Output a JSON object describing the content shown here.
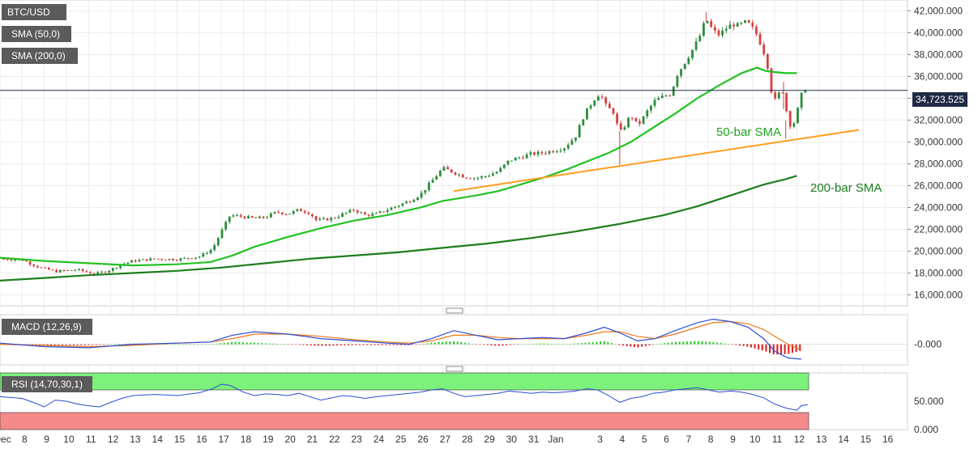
{
  "chart_data": {
    "type": "candlestick",
    "symbol_label": "BTC/USD",
    "indicator_labels": [
      "SMA (50,0)",
      "SMA (200,0)"
    ],
    "last_price": "34,723.525",
    "y_ticks": [
      "16,000.000",
      "18,000.000",
      "20,000.000",
      "22,000.000",
      "24,000.000",
      "26,000.000",
      "28,000.000",
      "30,000.000",
      "32,000.000",
      "34,000.000",
      "36,000.000",
      "38,000.000",
      "40,000.000",
      "42,000.000"
    ],
    "ylim": [
      15000,
      43000
    ],
    "x_ticks": [
      "Dec",
      "8",
      "9",
      "10",
      "11",
      "12",
      "13",
      "14",
      "15",
      "16",
      "17",
      "18",
      "19",
      "20",
      "21",
      "22",
      "23",
      "24",
      "25",
      "26",
      "27",
      "28",
      "29",
      "30",
      "31",
      "Jan",
      "3",
      "4",
      "5",
      "6",
      "7",
      "8",
      "9",
      "10",
      "11",
      "12",
      "13",
      "14",
      "15",
      "16"
    ],
    "x_tick_days": [
      7,
      8,
      9,
      10,
      11,
      12,
      13,
      14,
      15,
      16,
      17,
      18,
      19,
      20,
      21,
      22,
      23,
      24,
      25,
      26,
      27,
      28,
      29,
      30,
      31,
      32,
      34,
      35,
      36,
      37,
      38,
      39,
      40,
      41,
      42,
      43,
      44,
      45,
      46,
      47
    ],
    "xlim": [
      7,
      48
    ],
    "price_path": [
      [
        7.0,
        19300
      ],
      [
        8.0,
        19200
      ],
      [
        8.8,
        18500
      ],
      [
        9.5,
        18150
      ],
      [
        10.5,
        18300
      ],
      [
        11.3,
        17900
      ],
      [
        12.0,
        18300
      ],
      [
        12.5,
        18800
      ],
      [
        13.0,
        19100
      ],
      [
        14.0,
        19300
      ],
      [
        15.0,
        19250
      ],
      [
        16.0,
        19500
      ],
      [
        16.6,
        20200
      ],
      [
        17.0,
        21800
      ],
      [
        17.4,
        23300
      ],
      [
        17.8,
        23200
      ],
      [
        18.5,
        23000
      ],
      [
        19.0,
        23100
      ],
      [
        19.5,
        23600
      ],
      [
        20.0,
        23400
      ],
      [
        20.5,
        23800
      ],
      [
        21.0,
        23500
      ],
      [
        21.3,
        22800
      ],
      [
        22.0,
        23000
      ],
      [
        22.5,
        23400
      ],
      [
        23.0,
        23800
      ],
      [
        23.5,
        23300
      ],
      [
        24.0,
        23400
      ],
      [
        24.5,
        23800
      ],
      [
        25.0,
        24200
      ],
      [
        25.5,
        24600
      ],
      [
        26.0,
        25200
      ],
      [
        26.5,
        26400
      ],
      [
        27.0,
        27600
      ],
      [
        27.4,
        27300
      ],
      [
        28.0,
        26800
      ],
      [
        28.5,
        26700
      ],
      [
        29.0,
        26900
      ],
      [
        29.5,
        27300
      ],
      [
        30.0,
        28300
      ],
      [
        30.5,
        28600
      ],
      [
        31.0,
        28900
      ],
      [
        31.5,
        29000
      ],
      [
        32.0,
        29200
      ],
      [
        32.5,
        29500
      ],
      [
        33.0,
        30500
      ],
      [
        33.4,
        32500
      ],
      [
        33.8,
        33800
      ],
      [
        34.1,
        34500
      ],
      [
        34.4,
        33200
      ],
      [
        34.7,
        32800
      ],
      [
        35.0,
        30800
      ],
      [
        35.2,
        31400
      ],
      [
        35.5,
        32500
      ],
      [
        35.8,
        31500
      ],
      [
        36.0,
        32000
      ],
      [
        36.3,
        33000
      ],
      [
        36.6,
        33800
      ],
      [
        37.0,
        34200
      ],
      [
        37.3,
        34400
      ],
      [
        37.6,
        36200
      ],
      [
        38.0,
        37500
      ],
      [
        38.3,
        38500
      ],
      [
        38.6,
        39600
      ],
      [
        38.9,
        41300
      ],
      [
        39.2,
        40200
      ],
      [
        39.5,
        39800
      ],
      [
        39.8,
        40400
      ],
      [
        40.1,
        40800
      ],
      [
        40.4,
        40600
      ],
      [
        40.6,
        41000
      ],
      [
        40.9,
        40700
      ],
      [
        41.2,
        39800
      ],
      [
        41.5,
        38300
      ],
      [
        41.7,
        36800
      ],
      [
        41.9,
        34000
      ],
      [
        42.1,
        33700
      ],
      [
        42.3,
        35300
      ],
      [
        42.5,
        33100
      ],
      [
        42.7,
        31600
      ],
      [
        42.9,
        31800
      ],
      [
        43.1,
        33500
      ],
      [
        43.3,
        35000
      ],
      [
        43.5,
        34700
      ]
    ],
    "wick_spikes": [
      [
        35.0,
        27900,
        31000
      ],
      [
        42.5,
        30300,
        32000
      ],
      [
        38.9,
        41000,
        41900
      ],
      [
        42.4,
        33000,
        35500
      ]
    ],
    "sma50": [
      [
        7.0,
        19400
      ],
      [
        9.0,
        19100
      ],
      [
        11.0,
        18900
      ],
      [
        13.0,
        18700
      ],
      [
        15.0,
        18800
      ],
      [
        16.5,
        19000
      ],
      [
        17.5,
        19600
      ],
      [
        18.5,
        20400
      ],
      [
        20.0,
        21300
      ],
      [
        21.5,
        22100
      ],
      [
        23.0,
        22800
      ],
      [
        24.5,
        23300
      ],
      [
        26.0,
        24000
      ],
      [
        27.0,
        24600
      ],
      [
        28.5,
        25100
      ],
      [
        29.5,
        25500
      ],
      [
        30.5,
        26100
      ],
      [
        31.5,
        26700
      ],
      [
        32.5,
        27400
      ],
      [
        33.5,
        28200
      ],
      [
        34.5,
        29000
      ],
      [
        35.5,
        30000
      ],
      [
        36.5,
        31300
      ],
      [
        37.5,
        32600
      ],
      [
        38.5,
        34000
      ],
      [
        39.5,
        35200
      ],
      [
        40.5,
        36300
      ],
      [
        41.2,
        36800
      ],
      [
        41.6,
        36500
      ],
      [
        42.0,
        36400
      ],
      [
        42.5,
        36300
      ],
      [
        43.0,
        36300
      ]
    ],
    "sma200": [
      [
        7.0,
        17300
      ],
      [
        9.0,
        17550
      ],
      [
        11.0,
        17800
      ],
      [
        13.0,
        18000
      ],
      [
        15.0,
        18200
      ],
      [
        17.0,
        18500
      ],
      [
        19.0,
        18900
      ],
      [
        21.0,
        19300
      ],
      [
        23.0,
        19600
      ],
      [
        25.0,
        19900
      ],
      [
        27.0,
        20300
      ],
      [
        29.0,
        20700
      ],
      [
        31.0,
        21200
      ],
      [
        33.0,
        21800
      ],
      [
        35.0,
        22500
      ],
      [
        37.0,
        23300
      ],
      [
        38.5,
        24100
      ],
      [
        40.0,
        25100
      ],
      [
        41.5,
        26100
      ],
      [
        42.5,
        26600
      ],
      [
        43.0,
        26900
      ]
    ],
    "trendline": [
      [
        27.5,
        25500
      ],
      [
        45.8,
        31100
      ]
    ],
    "annotations": [
      "50-bar SMA",
      "200-bar SMA"
    ],
    "macd": {
      "label": "MACD (12,26,9)",
      "y_tick": "-0.000",
      "macd_line": [
        [
          7,
          0.1
        ],
        [
          9,
          -0.2
        ],
        [
          11,
          -0.3
        ],
        [
          13,
          0.0
        ],
        [
          15,
          0.1
        ],
        [
          16.5,
          0.2
        ],
        [
          17.5,
          0.8
        ],
        [
          18.5,
          1.1
        ],
        [
          20,
          0.9
        ],
        [
          21.5,
          0.5
        ],
        [
          23,
          0.3
        ],
        [
          24.5,
          0.1
        ],
        [
          25.5,
          0.0
        ],
        [
          26.5,
          0.5
        ],
        [
          27.5,
          1.2
        ],
        [
          28.5,
          0.8
        ],
        [
          29.5,
          0.4
        ],
        [
          30.5,
          0.5
        ],
        [
          31.5,
          0.6
        ],
        [
          32.5,
          0.5
        ],
        [
          33.5,
          1.0
        ],
        [
          34.3,
          1.5
        ],
        [
          35.0,
          1.0
        ],
        [
          35.8,
          0.3
        ],
        [
          36.6,
          0.5
        ],
        [
          37.5,
          1.2
        ],
        [
          38.5,
          1.9
        ],
        [
          39.2,
          2.2
        ],
        [
          40.0,
          2.0
        ],
        [
          40.8,
          1.5
        ],
        [
          41.5,
          0.5
        ],
        [
          42.0,
          -0.6
        ],
        [
          42.6,
          -1.2
        ],
        [
          43.2,
          -1.3
        ]
      ],
      "signal_line": [
        [
          7,
          0.0
        ],
        [
          9,
          -0.1
        ],
        [
          11,
          -0.2
        ],
        [
          13,
          -0.1
        ],
        [
          15,
          0.1
        ],
        [
          16.5,
          0.2
        ],
        [
          17.5,
          0.5
        ],
        [
          18.5,
          0.9
        ],
        [
          20,
          0.9
        ],
        [
          21.5,
          0.7
        ],
        [
          23,
          0.4
        ],
        [
          24.5,
          0.2
        ],
        [
          25.5,
          0.1
        ],
        [
          26.5,
          0.3
        ],
        [
          27.5,
          0.8
        ],
        [
          28.5,
          0.8
        ],
        [
          29.5,
          0.6
        ],
        [
          30.5,
          0.5
        ],
        [
          31.5,
          0.5
        ],
        [
          32.5,
          0.5
        ],
        [
          33.5,
          0.8
        ],
        [
          34.3,
          1.1
        ],
        [
          35.0,
          1.1
        ],
        [
          35.8,
          0.7
        ],
        [
          36.6,
          0.5
        ],
        [
          37.5,
          0.9
        ],
        [
          38.5,
          1.5
        ],
        [
          39.2,
          1.9
        ],
        [
          40.0,
          2.0
        ],
        [
          40.8,
          1.8
        ],
        [
          41.5,
          1.3
        ],
        [
          42.0,
          0.7
        ],
        [
          42.6,
          0.0
        ],
        [
          43.2,
          -0.5
        ]
      ],
      "range": [
        -1.8,
        2.6
      ]
    },
    "rsi": {
      "label": "RSI (14,70,30,1)",
      "y_ticks": [
        "0.000",
        "50.000"
      ],
      "upper": 70,
      "lower": 30,
      "values": [
        [
          7,
          58
        ],
        [
          8,
          55
        ],
        [
          8.5,
          48
        ],
        [
          9,
          40
        ],
        [
          9.5,
          52
        ],
        [
          10,
          50
        ],
        [
          10.5,
          45
        ],
        [
          11,
          42
        ],
        [
          11.5,
          40
        ],
        [
          12,
          48
        ],
        [
          12.5,
          55
        ],
        [
          13,
          60
        ],
        [
          14,
          62
        ],
        [
          15,
          60
        ],
        [
          16,
          65
        ],
        [
          16.6,
          72
        ],
        [
          17,
          80
        ],
        [
          17.4,
          78
        ],
        [
          18,
          66
        ],
        [
          18.5,
          60
        ],
        [
          19,
          63
        ],
        [
          19.5,
          62
        ],
        [
          20,
          60
        ],
        [
          20.5,
          64
        ],
        [
          21,
          58
        ],
        [
          21.5,
          52
        ],
        [
          22,
          56
        ],
        [
          22.5,
          60
        ],
        [
          23,
          58
        ],
        [
          23.5,
          55
        ],
        [
          24,
          58
        ],
        [
          24.5,
          60
        ],
        [
          25,
          62
        ],
        [
          25.5,
          64
        ],
        [
          26,
          66
        ],
        [
          26.5,
          70
        ],
        [
          27,
          72
        ],
        [
          27.5,
          64
        ],
        [
          28,
          58
        ],
        [
          28.5,
          60
        ],
        [
          29,
          62
        ],
        [
          29.5,
          64
        ],
        [
          30,
          68
        ],
        [
          30.5,
          66
        ],
        [
          31,
          64
        ],
        [
          31.5,
          66
        ],
        [
          32,
          65
        ],
        [
          32.5,
          66
        ],
        [
          33,
          68
        ],
        [
          33.5,
          72
        ],
        [
          34,
          70
        ],
        [
          34.5,
          60
        ],
        [
          35,
          48
        ],
        [
          35.5,
          55
        ],
        [
          36,
          58
        ],
        [
          36.5,
          64
        ],
        [
          37,
          66
        ],
        [
          37.5,
          70
        ],
        [
          38,
          72
        ],
        [
          38.5,
          74
        ],
        [
          39,
          70
        ],
        [
          39.5,
          66
        ],
        [
          40,
          68
        ],
        [
          40.5,
          66
        ],
        [
          41,
          62
        ],
        [
          41.5,
          56
        ],
        [
          42,
          45
        ],
        [
          42.5,
          38
        ],
        [
          43,
          34
        ],
        [
          43.2,
          42
        ],
        [
          43.5,
          44
        ]
      ],
      "range": [
        0,
        100
      ]
    }
  }
}
